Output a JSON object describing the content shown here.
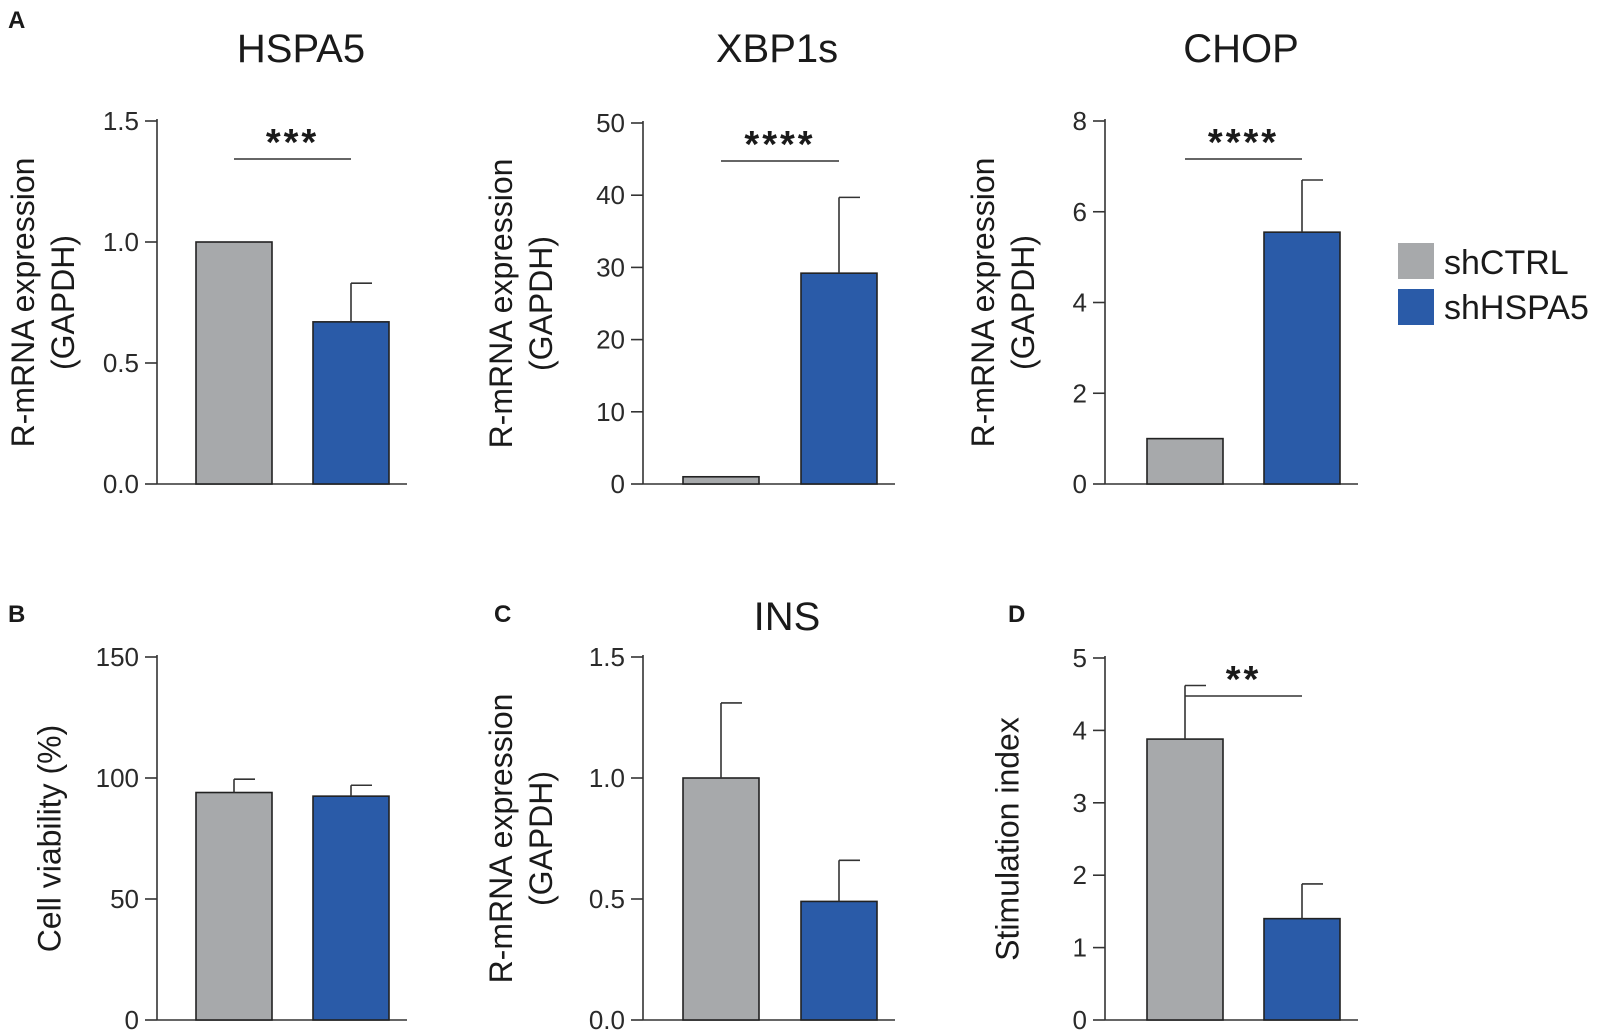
{
  "legend": {
    "items": [
      {
        "label": "shCTRL",
        "color": "#a7a9ab"
      },
      {
        "label": "shHSPA5",
        "color": "#2a5ba8"
      }
    ]
  },
  "chart_data": [
    {
      "panel": "A",
      "type": "bar",
      "title": "HSPA5",
      "ylabel": [
        "R-mRNA expression",
        "(GAPDH)"
      ],
      "ylim": [
        0,
        1.5
      ],
      "yticks": [
        "0.0",
        "0.5",
        "1.0",
        "1.5"
      ],
      "categories": [
        "shCTRL",
        "shHSPA5"
      ],
      "values": [
        1.0,
        0.67
      ],
      "errors": [
        0,
        0.16
      ],
      "significance": "***"
    },
    {
      "panel": "",
      "type": "bar",
      "title": "XBP1s",
      "ylabel": [
        "R-mRNA expression",
        "(GAPDH)"
      ],
      "ylim": [
        0,
        50
      ],
      "yticks": [
        "0",
        "10",
        "20",
        "30",
        "40",
        "50"
      ],
      "categories": [
        "shCTRL",
        "shHSPA5"
      ],
      "values": [
        1.0,
        29.2
      ],
      "errors": [
        0,
        10.5
      ],
      "significance": "****"
    },
    {
      "panel": "",
      "type": "bar",
      "title": "CHOP",
      "ylabel": [
        "R-mRNA expression",
        "(GAPDH)"
      ],
      "ylim": [
        0,
        8
      ],
      "yticks": [
        "0",
        "2",
        "4",
        "6",
        "8"
      ],
      "categories": [
        "shCTRL",
        "shHSPA5"
      ],
      "values": [
        1.0,
        5.55
      ],
      "errors": [
        0,
        1.15
      ],
      "significance": "****"
    },
    {
      "panel": "B",
      "type": "bar",
      "title": "",
      "ylabel": [
        "Cell viability (%)"
      ],
      "ylim": [
        0,
        150
      ],
      "yticks": [
        "0",
        "50",
        "100",
        "150"
      ],
      "categories": [
        "shCTRL",
        "shHSPA5"
      ],
      "values": [
        94,
        92.5
      ],
      "errors": [
        5.5,
        4.5
      ],
      "significance": ""
    },
    {
      "panel": "C",
      "type": "bar",
      "title": "INS",
      "ylabel": [
        "R-mRNA expression",
        "(GAPDH)"
      ],
      "ylim": [
        0,
        1.5
      ],
      "yticks": [
        "0.0",
        "0.5",
        "1.0",
        "1.5"
      ],
      "categories": [
        "shCTRL",
        "shHSPA5"
      ],
      "values": [
        1.0,
        0.49
      ],
      "errors": [
        0.31,
        0.17
      ],
      "significance": ""
    },
    {
      "panel": "D",
      "type": "bar",
      "title": "",
      "ylabel": [
        "Stimulation index"
      ],
      "ylim": [
        0,
        5
      ],
      "yticks": [
        "0",
        "1",
        "2",
        "3",
        "4",
        "5"
      ],
      "categories": [
        "shCTRL",
        "shHSPA5"
      ],
      "values": [
        3.88,
        1.4
      ],
      "errors": [
        0.74,
        0.48
      ],
      "significance": "**"
    }
  ]
}
